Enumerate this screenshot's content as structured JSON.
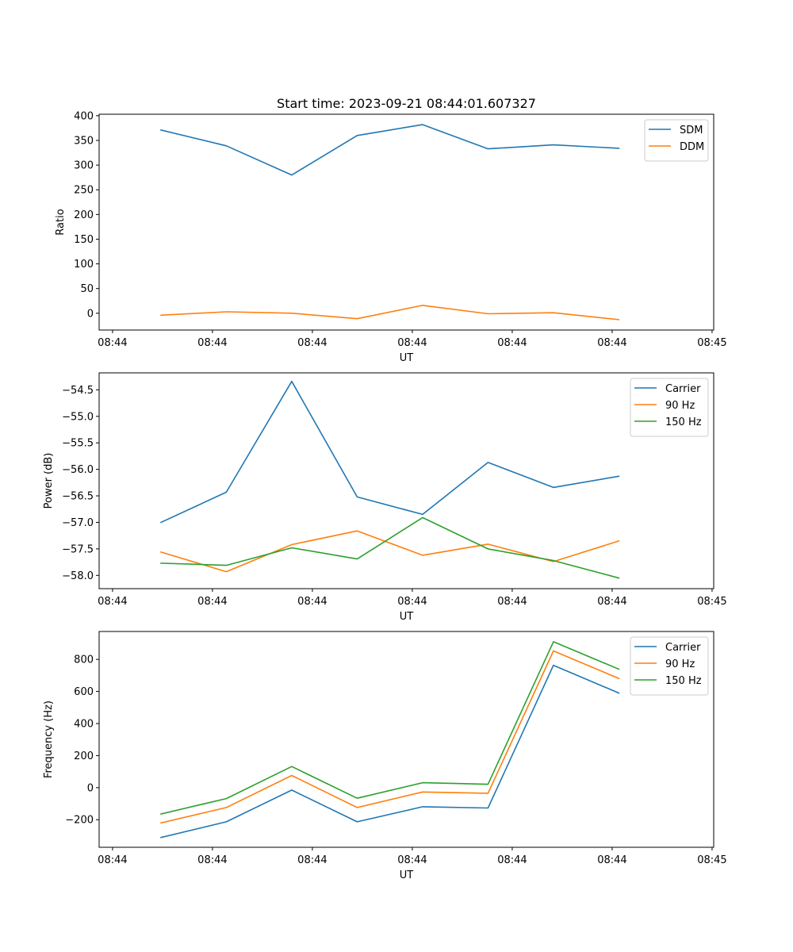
{
  "figure": {
    "title": "Start time: 2023-09-21 08:44:01.607327"
  },
  "colors": {
    "blue": "#1f77b4",
    "orange": "#ff7f0e",
    "green": "#2ca02c"
  },
  "chart_data": [
    {
      "type": "line",
      "title": "Start time: 2023-09-21 08:44:01.607327",
      "xlabel": "UT",
      "ylabel": "Ratio",
      "x_tick_labels": [
        "08:44",
        "08:44",
        "08:44",
        "08:44",
        "08:44",
        "08:44",
        "08:45"
      ],
      "y_ticks": [
        0,
        50,
        100,
        150,
        200,
        250,
        300,
        350,
        400
      ],
      "y_tick_labels": [
        "0",
        "50",
        "100",
        "150",
        "200",
        "250",
        "300",
        "350",
        "400"
      ],
      "ylim": [
        -34,
        403
      ],
      "x": [
        0,
        1,
        2,
        3,
        4,
        5,
        6,
        7
      ],
      "legend_position": "top-right",
      "grid": false,
      "series": [
        {
          "name": "SDM",
          "color": "#1f77b4",
          "values": [
            371,
            339,
            280,
            360,
            382,
            333,
            341,
            334
          ]
        },
        {
          "name": "DDM",
          "color": "#ff7f0e",
          "values": [
            -4,
            3,
            0,
            -11,
            16,
            -1,
            1,
            -13
          ]
        }
      ]
    },
    {
      "type": "line",
      "title": "",
      "xlabel": "UT",
      "ylabel": "Power (dB)",
      "x_tick_labels": [
        "08:44",
        "08:44",
        "08:44",
        "08:44",
        "08:44",
        "08:44",
        "08:45"
      ],
      "y_ticks": [
        -58.0,
        -57.5,
        -57.0,
        -56.5,
        -56.0,
        -55.5,
        -55.0,
        -54.5
      ],
      "y_tick_labels": [
        "−58.0",
        "−57.5",
        "−57.0",
        "−56.5",
        "−56.0",
        "−55.5",
        "−55.0",
        "−54.5"
      ],
      "ylim": [
        -58.25,
        -54.18
      ],
      "x": [
        0,
        1,
        2,
        3,
        4,
        5,
        6,
        7
      ],
      "legend_position": "top-right",
      "grid": false,
      "series": [
        {
          "name": "Carrier",
          "color": "#1f77b4",
          "values": [
            -57.0,
            -56.43,
            -54.34,
            -56.52,
            -56.85,
            -55.87,
            -56.34,
            -56.13
          ]
        },
        {
          "name": "90 Hz",
          "color": "#ff7f0e",
          "values": [
            -57.56,
            -57.93,
            -57.42,
            -57.16,
            -57.62,
            -57.41,
            -57.74,
            -57.35
          ]
        },
        {
          "name": "150 Hz",
          "color": "#2ca02c",
          "values": [
            -57.77,
            -57.81,
            -57.48,
            -57.69,
            -56.91,
            -57.5,
            -57.72,
            -58.05
          ]
        }
      ]
    },
    {
      "type": "line",
      "title": "",
      "xlabel": "UT",
      "ylabel": "Frequency (Hz)",
      "x_tick_labels": [
        "08:44",
        "08:44",
        "08:44",
        "08:44",
        "08:44",
        "08:44",
        "08:45"
      ],
      "y_ticks": [
        -200,
        0,
        200,
        400,
        600,
        800
      ],
      "y_tick_labels": [
        "−200",
        "0",
        "200",
        "400",
        "600",
        "800"
      ],
      "ylim": [
        -372,
        974
      ],
      "x": [
        0,
        1,
        2,
        3,
        4,
        5,
        6,
        7
      ],
      "legend_position": "top-right",
      "grid": false,
      "series": [
        {
          "name": "Carrier",
          "color": "#1f77b4",
          "values": [
            -311,
            -213,
            -15,
            -213,
            -119,
            -127,
            763,
            590
          ]
        },
        {
          "name": "90 Hz",
          "color": "#ff7f0e",
          "values": [
            -220,
            -124,
            76,
            -124,
            -27,
            -35,
            853,
            681
          ]
        },
        {
          "name": "150 Hz",
          "color": "#2ca02c",
          "values": [
            -164,
            -68,
            132,
            -66,
            31,
            21,
            910,
            739
          ]
        }
      ]
    }
  ]
}
